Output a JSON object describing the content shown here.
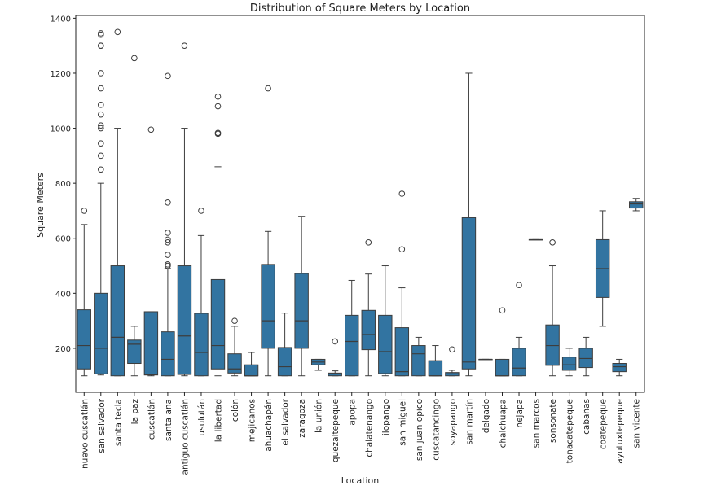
{
  "chart_data": {
    "type": "boxplot",
    "title": "Distribution of Square Meters by Location",
    "xlabel": "Location",
    "ylabel": "Square Meters",
    "ylim": [
      40,
      1410
    ],
    "yticks": [
      200,
      400,
      600,
      800,
      1000,
      1200,
      1400
    ],
    "grid": false,
    "legend": "none",
    "colors": {
      "box": "#3274a1",
      "line": "#3d3d3d"
    },
    "categories": [
      "nuevo cuscatlán",
      "san salvador",
      "santa tecla",
      "la paz",
      "cuscatlán",
      "santa ana",
      "antiguo cuscatlán",
      "usulután",
      "la libertad",
      "colón",
      "mejicanos",
      "ahuachapán",
      "el salvador",
      "zaragoza",
      "la unión",
      "quezaltepeque",
      "apopa",
      "chalatenango",
      "ilopango",
      "san miguel",
      "san juan opico",
      "cuscatancingo",
      "soyapango",
      "san martín",
      "delgado",
      "chalchuapa",
      "nejapa",
      "san marcos",
      "sonsonate",
      "tonacatepeque",
      "cabañas",
      "coatepeque",
      "ayutuxtepeque",
      "san vicente"
    ],
    "boxes": [
      {
        "whislo": 100,
        "q1": 125,
        "med": 210,
        "q3": 340,
        "whishi": 650,
        "fliers": [
          700
        ]
      },
      {
        "whislo": 103,
        "q1": 107,
        "med": 200,
        "q3": 400,
        "whishi": 800,
        "fliers": [
          850,
          900,
          945,
          1000,
          1010,
          1050,
          1085,
          1145,
          1200,
          1300,
          1300,
          1340,
          1345
        ]
      },
      {
        "whislo": 100,
        "q1": 100,
        "med": 240,
        "q3": 500,
        "whishi": 1000,
        "fliers": [
          1350
        ]
      },
      {
        "whislo": 100,
        "q1": 145,
        "med": 215,
        "q3": 230,
        "whishi": 280,
        "fliers": [
          1255
        ]
      },
      {
        "whislo": 100,
        "q1": 103,
        "med": 105,
        "q3": 333,
        "whishi": 333,
        "fliers": [
          995
        ]
      },
      {
        "whislo": 100,
        "q1": 100,
        "med": 160,
        "q3": 260,
        "whishi": 490,
        "fliers": [
          500,
          505,
          540,
          585,
          595,
          620,
          730,
          1190
        ]
      },
      {
        "whislo": 100,
        "q1": 105,
        "med": 245,
        "q3": 500,
        "whishi": 1000,
        "fliers": [
          1300
        ]
      },
      {
        "whislo": 100,
        "q1": 100,
        "med": 185,
        "q3": 327,
        "whishi": 610,
        "fliers": [
          700
        ]
      },
      {
        "whislo": 100,
        "q1": 125,
        "med": 210,
        "q3": 450,
        "whishi": 860,
        "fliers": [
          980,
          983,
          1080,
          1115
        ]
      },
      {
        "whislo": 100,
        "q1": 110,
        "med": 125,
        "q3": 180,
        "whishi": 280,
        "fliers": [
          300
        ]
      },
      {
        "whislo": 100,
        "q1": 100,
        "med": 100,
        "q3": 140,
        "whishi": 185,
        "fliers": []
      },
      {
        "whislo": 100,
        "q1": 200,
        "med": 300,
        "q3": 505,
        "whishi": 625,
        "fliers": [
          1145
        ]
      },
      {
        "whislo": 100,
        "q1": 100,
        "med": 133,
        "q3": 203,
        "whishi": 328,
        "fliers": []
      },
      {
        "whislo": 100,
        "q1": 200,
        "med": 300,
        "q3": 472,
        "whishi": 680,
        "fliers": []
      },
      {
        "whislo": 120,
        "q1": 140,
        "med": 150,
        "q3": 160,
        "whishi": 160,
        "fliers": []
      },
      {
        "whislo": 100,
        "q1": 100,
        "med": 107,
        "q3": 110,
        "whishi": 118,
        "fliers": [
          225
        ]
      },
      {
        "whislo": 100,
        "q1": 100,
        "med": 225,
        "q3": 320,
        "whishi": 447,
        "fliers": []
      },
      {
        "whislo": 100,
        "q1": 195,
        "med": 250,
        "q3": 338,
        "whishi": 470,
        "fliers": [
          585
        ]
      },
      {
        "whislo": 100,
        "q1": 108,
        "med": 188,
        "q3": 320,
        "whishi": 500,
        "fliers": []
      },
      {
        "whislo": 100,
        "q1": 100,
        "med": 115,
        "q3": 275,
        "whishi": 420,
        "fliers": [
          560,
          762
        ]
      },
      {
        "whislo": 100,
        "q1": 100,
        "med": 180,
        "q3": 210,
        "whishi": 240,
        "fliers": []
      },
      {
        "whislo": 100,
        "q1": 100,
        "med": 100,
        "q3": 155,
        "whishi": 210,
        "fliers": []
      },
      {
        "whislo": 100,
        "q1": 100,
        "med": 107,
        "q3": 112,
        "whishi": 120,
        "fliers": [
          196
        ]
      },
      {
        "whislo": 100,
        "q1": 125,
        "med": 150,
        "q3": 675,
        "whishi": 1200,
        "fliers": []
      },
      {
        "whislo": 160,
        "q1": 160,
        "med": 160,
        "q3": 160,
        "whishi": 160,
        "fliers": []
      },
      {
        "whislo": 100,
        "q1": 100,
        "med": 100,
        "q3": 160,
        "whishi": 160,
        "fliers": [
          338
        ]
      },
      {
        "whislo": 100,
        "q1": 100,
        "med": 128,
        "q3": 200,
        "whishi": 240,
        "fliers": [
          430
        ]
      },
      {
        "whislo": 595,
        "q1": 595,
        "med": 595,
        "q3": 595,
        "whishi": 595,
        "fliers": []
      },
      {
        "whislo": 100,
        "q1": 138,
        "med": 210,
        "q3": 285,
        "whishi": 500,
        "fliers": [
          585
        ]
      },
      {
        "whislo": 100,
        "q1": 120,
        "med": 140,
        "q3": 168,
        "whishi": 200,
        "fliers": []
      },
      {
        "whislo": 100,
        "q1": 130,
        "med": 163,
        "q3": 200,
        "whishi": 240,
        "fliers": []
      },
      {
        "whislo": 280,
        "q1": 385,
        "med": 490,
        "q3": 595,
        "whishi": 700,
        "fliers": []
      },
      {
        "whislo": 100,
        "q1": 115,
        "med": 133,
        "q3": 145,
        "whishi": 160,
        "fliers": []
      },
      {
        "whislo": 700,
        "q1": 710,
        "med": 725,
        "q3": 733,
        "whishi": 745,
        "fliers": []
      }
    ]
  }
}
